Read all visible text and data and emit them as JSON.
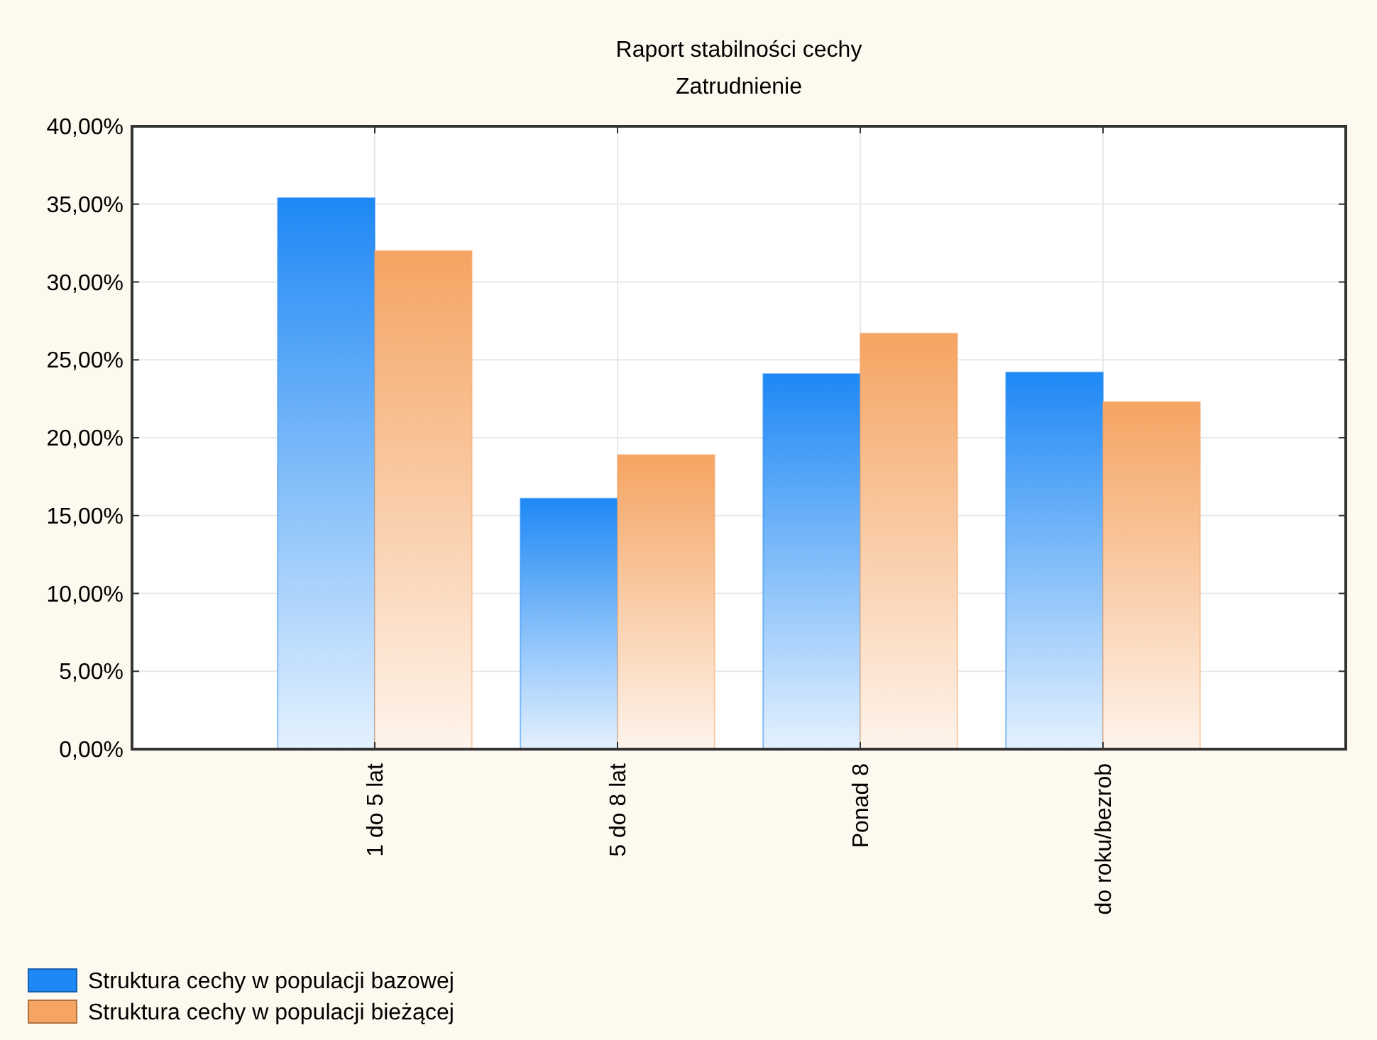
{
  "chart_data": {
    "type": "bar",
    "title": "Raport stabilności cechy",
    "subtitle": "Zatrudnienie",
    "categories": [
      "1 do 5 lat",
      "5 do 8 lat",
      "Ponad 8",
      "do roku/bezrob"
    ],
    "series": [
      {
        "name": "Struktura cechy w populacji bazowej",
        "color": "#1e88f5",
        "values": [
          35.4,
          16.1,
          24.1,
          24.2
        ]
      },
      {
        "name": "Struktura cechy w populacji bieżącej",
        "color": "#f5a462",
        "values": [
          32.0,
          18.9,
          26.7,
          22.3
        ]
      }
    ],
    "ylim": [
      0,
      40
    ],
    "yticks": [
      {
        "value": 0,
        "label": "0,00%"
      },
      {
        "value": 5,
        "label": "5,00%"
      },
      {
        "value": 10,
        "label": "10,00%"
      },
      {
        "value": 15,
        "label": "15,00%"
      },
      {
        "value": 20,
        "label": "20,00%"
      },
      {
        "value": 25,
        "label": "25,00%"
      },
      {
        "value": 30,
        "label": "30,00%"
      },
      {
        "value": 35,
        "label": "35,00%"
      },
      {
        "value": 40,
        "label": "40,00%"
      }
    ],
    "grid": true,
    "legend": "bottom left"
  }
}
